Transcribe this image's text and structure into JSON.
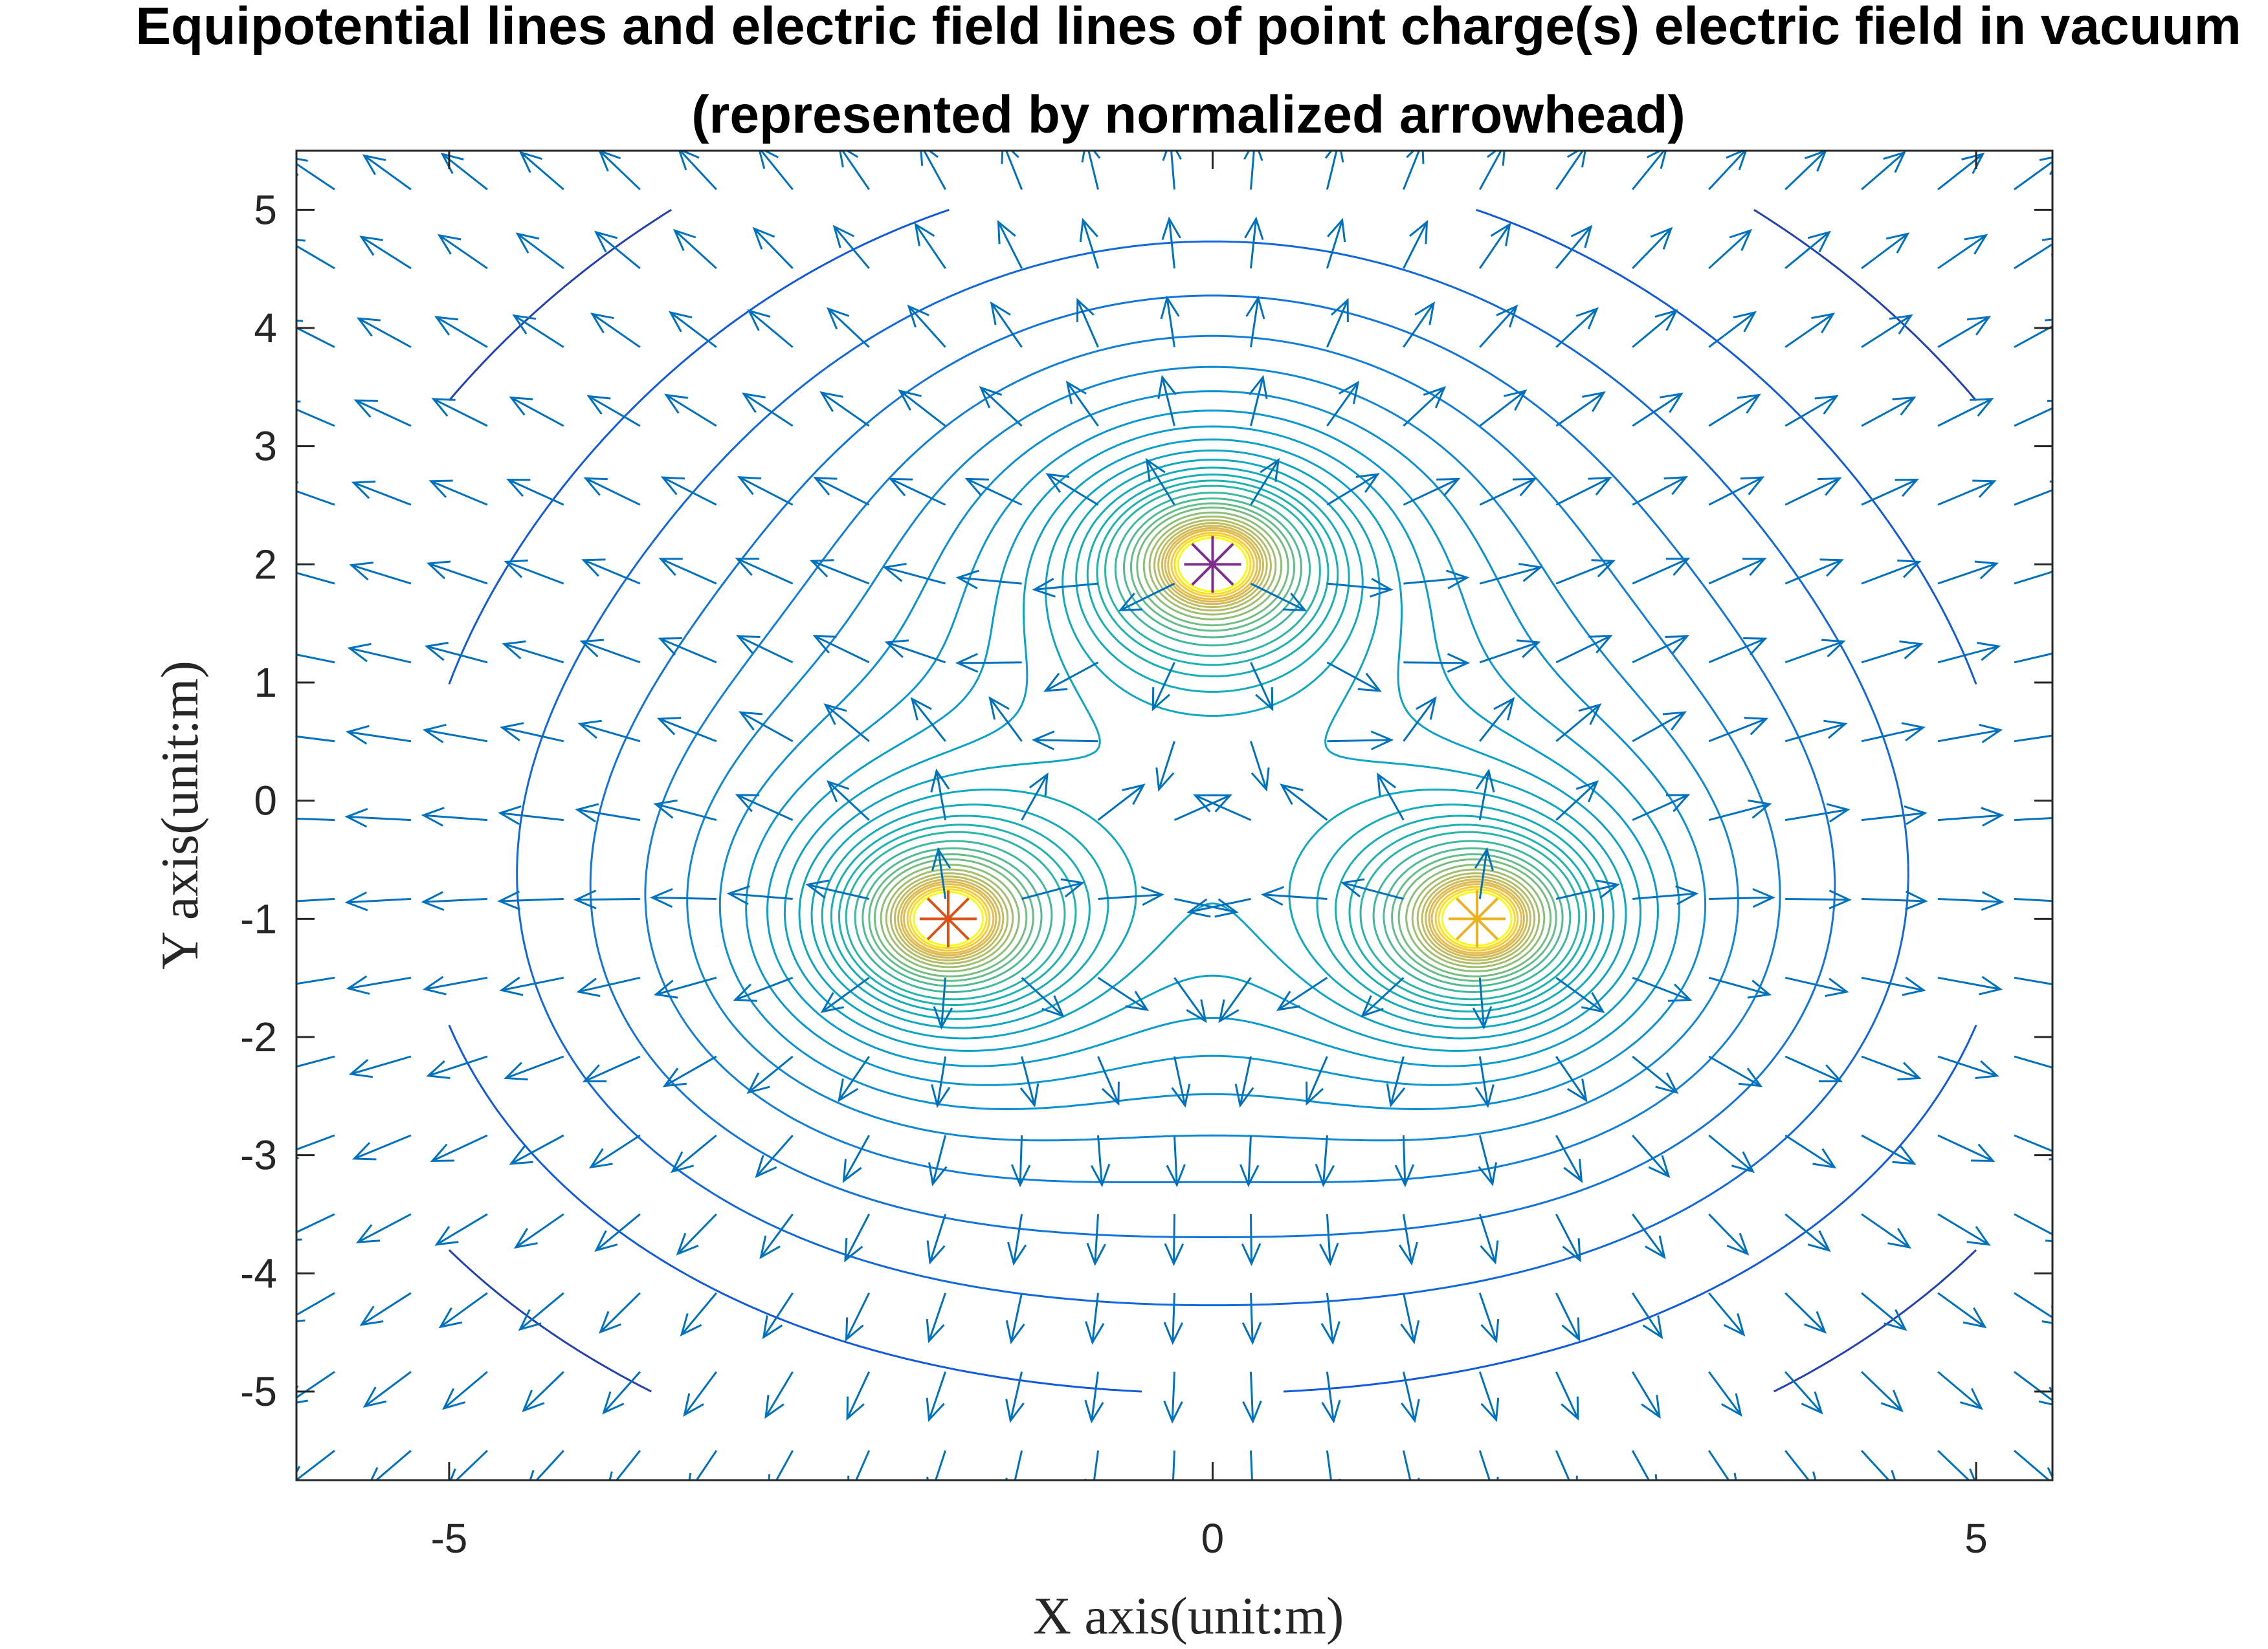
{
  "chart_data": {
    "type": "contour+quiver",
    "title_lines": [
      "Equipotential lines and electric field lines of point charge(s) electric field in vacuum",
      "(represented by normalized arrowhead)"
    ],
    "xlabel": "X axis(unit:m)",
    "ylabel": "Y axis(unit:m)",
    "xlim": [
      -6,
      5.5
    ],
    "ylim": [
      -5.75,
      5.5
    ],
    "xticks": [
      -5,
      0,
      5
    ],
    "xtick_labels": [
      "-5",
      "0",
      "5"
    ],
    "yticks": [
      5,
      4,
      3,
      2,
      1,
      0,
      -1,
      -2,
      -3,
      -4,
      -5
    ],
    "ytick_labels": [
      "5",
      "4",
      "3",
      "2",
      "1",
      "0",
      "-1",
      "-2",
      "-3",
      "-4",
      "-5"
    ],
    "grid": false,
    "charges": [
      {
        "x": 0,
        "y": 2,
        "marker": "*",
        "color": "#7E2F8E"
      },
      {
        "x": -1.732,
        "y": -1,
        "marker": "*",
        "color": "#D95319"
      },
      {
        "x": 1.732,
        "y": -1,
        "marker": "*",
        "color": "#EDB120"
      }
    ],
    "quiver": {
      "color": "#0072BD",
      "x_start": -5.75,
      "x_step": 0.5,
      "x_count": 23,
      "y_start": -5.5,
      "y_step": 0.667,
      "y_count": 17,
      "normalized": true
    },
    "contour_levels": [
      0.42,
      0.5,
      0.6,
      0.7,
      0.8,
      0.9,
      1.0,
      1.1,
      1.2,
      1.3,
      1.4,
      1.5,
      1.6,
      1.7,
      1.8,
      1.9,
      2.0,
      2.15,
      2.3,
      2.45,
      2.6,
      2.8,
      3.0,
      3.2,
      3.4,
      3.6,
      3.8,
      4.0,
      4.3,
      4.6,
      5.0
    ],
    "colormap": "parula"
  }
}
